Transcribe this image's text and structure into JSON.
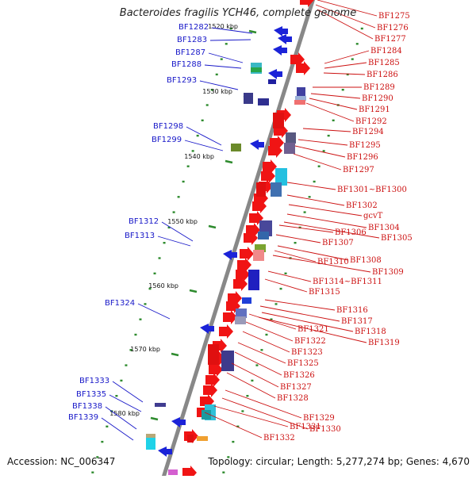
{
  "title": "Bacteroides fragilis YCH46, complete genome",
  "footer": {
    "accession": "Accession: NC_006347",
    "topology": "Topology: circular; Length: 5,277,274 bp; Genes: 4,670"
  },
  "colors": {
    "left_label": "#1818c8",
    "right_label": "#cc1010",
    "backbone": "#888888",
    "tick": "#2e8b2e"
  },
  "scale_labels": [
    "1520 kbp",
    "1530 kbp",
    "1540 kbp",
    "1550 kbp",
    "1560 kbp",
    "1570 kbp",
    "1580 kbp"
  ],
  "left_labels": [
    "BF1282",
    "BF1283",
    "BF1287",
    "BF1288",
    "BF1293",
    "BF1298",
    "BF1299",
    "BF1312",
    "BF1313",
    "BF1324",
    "BF1333",
    "BF1335",
    "BF1338",
    "BF1339"
  ],
  "right_labels": [
    "BF1275",
    "BF1276",
    "BF1277",
    "BF1284",
    "BF1285",
    "BF1286",
    "BF1289",
    "BF1290",
    "BF1291",
    "BF1292",
    "BF1294",
    "BF1295",
    "BF1296",
    "BF1297",
    "BF1301~BF1300",
    "BF1302",
    "gcvT",
    "BF1304",
    "BF1305",
    "BF1306",
    "BF1307",
    "BF1308",
    "BF1310",
    "BF1309",
    "BF1314~BF1311",
    "BF1315",
    "BF1316",
    "BF1317",
    "BF1318",
    "BF1319",
    "BF1321",
    "BF1322",
    "BF1323",
    "BF1325",
    "BF1326",
    "BF1327",
    "BF1328",
    "BF1329",
    "BF1330",
    "BF1331",
    "BF1332"
  ]
}
